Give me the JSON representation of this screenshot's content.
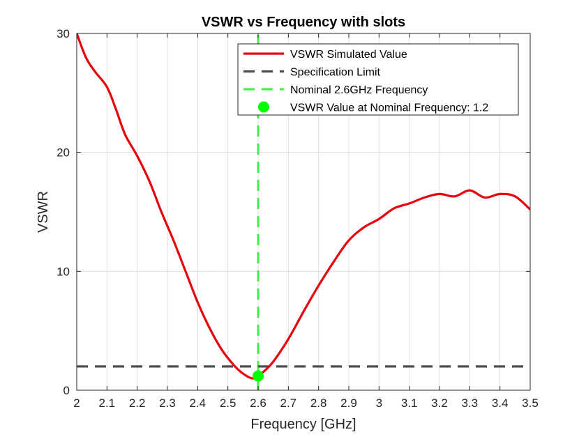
{
  "chart_data": {
    "type": "line",
    "title": "VSWR vs Frequency with slots",
    "xlabel": "Frequency [GHz]",
    "ylabel": "VSWR",
    "xlim": [
      2,
      3.5
    ],
    "ylim": [
      0,
      30
    ],
    "xticks": [
      2,
      2.1,
      2.2,
      2.3,
      2.4,
      2.5,
      2.6,
      2.7,
      2.8,
      2.9,
      3,
      3.1,
      3.2,
      3.3,
      3.4,
      3.5
    ],
    "yticks": [
      0,
      10,
      20,
      30
    ],
    "xtick_labels": [
      "2",
      "2.1",
      "2.2",
      "2.3",
      "2.4",
      "2.5",
      "2.6",
      "2.7",
      "2.8",
      "2.9",
      "3",
      "3.1",
      "3.2",
      "3.3",
      "3.4",
      "3.5"
    ],
    "ytick_labels": [
      "0",
      "10",
      "20",
      "30"
    ],
    "grid": true,
    "legend_position": "top-right",
    "series": [
      {
        "name": "VSWR Simulated Value",
        "style": "solid",
        "color": "#e8000b",
        "x": [
          2.0,
          2.03,
          2.06,
          2.1,
          2.13,
          2.16,
          2.2,
          2.24,
          2.28,
          2.32,
          2.36,
          2.4,
          2.44,
          2.48,
          2.52,
          2.55,
          2.58,
          2.6,
          2.62,
          2.65,
          2.7,
          2.75,
          2.8,
          2.85,
          2.9,
          2.95,
          3.0,
          3.05,
          3.1,
          3.15,
          3.2,
          3.25,
          3.3,
          3.35,
          3.4,
          3.45,
          3.5
        ],
        "y": [
          30.0,
          28.0,
          26.8,
          25.5,
          23.6,
          21.5,
          19.7,
          17.6,
          15.0,
          12.6,
          10.0,
          7.4,
          5.2,
          3.4,
          2.1,
          1.4,
          1.0,
          1.2,
          1.6,
          2.4,
          4.3,
          6.6,
          8.8,
          10.8,
          12.6,
          13.7,
          14.4,
          15.3,
          15.7,
          16.2,
          16.5,
          16.3,
          16.8,
          16.2,
          16.5,
          16.3,
          15.2
        ]
      },
      {
        "name": "Specification Limit",
        "style": "dashed",
        "color": "#4d4d4d",
        "x": [
          2.0,
          3.5
        ],
        "y": [
          2,
          2
        ]
      },
      {
        "name": "Nominal 2.6GHz Frequency",
        "style": "dashed",
        "color": "#4cf04c",
        "x": [
          2.6,
          2.6
        ],
        "y": [
          0,
          30
        ]
      },
      {
        "name": "VSWR Value at Nominal Frequency: 1.2",
        "style": "marker",
        "color": "#00ff00",
        "x": [
          2.6
        ],
        "y": [
          1.2
        ]
      }
    ]
  }
}
